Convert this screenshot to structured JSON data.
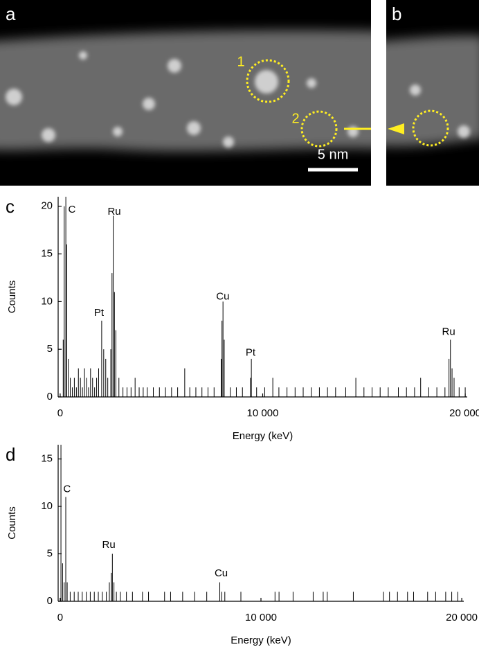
{
  "panels": {
    "a": {
      "label": "a",
      "markers": [
        "1",
        "2"
      ],
      "scale_bar": "5 nm"
    },
    "b": {
      "label": "b"
    }
  },
  "chart_data": [
    {
      "type": "stick",
      "panel_label": "c",
      "xlabel": "Energy (keV)",
      "ylabel": "Counts",
      "color": "#000000",
      "xlim": [
        -100,
        20100
      ],
      "xticks": [
        0,
        {
          "value": 10000,
          "label": "10 000"
        },
        {
          "value": 20000,
          "label": "20 000"
        }
      ],
      "ylim": [
        0,
        21
      ],
      "yticks": [
        0,
        5,
        10,
        15,
        20
      ],
      "x": [
        150,
        200,
        280,
        320,
        400,
        500,
        600,
        700,
        800,
        900,
        1000,
        1100,
        1200,
        1300,
        1400,
        1500,
        1600,
        1700,
        1800,
        1900,
        2050,
        2150,
        2250,
        2350,
        2500,
        2560,
        2620,
        2680,
        2750,
        2900,
        3100,
        3300,
        3500,
        3700,
        3900,
        4100,
        4300,
        4600,
        4900,
        5200,
        5500,
        5800,
        6150,
        6400,
        6700,
        7000,
        7300,
        7600,
        7950,
        7990,
        8040,
        8100,
        8400,
        8700,
        9000,
        9400,
        9440,
        9700,
        10100,
        10500,
        10800,
        11200,
        11600,
        12000,
        12400,
        12800,
        13200,
        13600,
        14100,
        14600,
        15000,
        15400,
        15800,
        16200,
        16700,
        17100,
        17500,
        17800,
        18200,
        18600,
        19000,
        19200,
        19270,
        19350,
        19450,
        19700,
        20000
      ],
      "values": [
        6,
        20,
        21,
        16,
        4,
        2,
        1,
        2,
        1,
        3,
        2,
        1,
        3,
        2,
        1,
        3,
        2,
        1,
        2,
        3,
        8,
        5,
        4,
        2,
        5,
        13,
        19,
        11,
        7,
        2,
        1,
        1,
        1,
        2,
        1,
        1,
        1,
        1,
        1,
        1,
        1,
        1,
        3,
        1,
        1,
        1,
        1,
        1,
        4,
        8,
        10,
        6,
        1,
        1,
        1,
        2,
        4,
        1,
        1,
        2,
        1,
        1,
        1,
        1,
        1,
        1,
        1,
        1,
        1,
        2,
        1,
        1,
        1,
        1,
        1,
        1,
        1,
        2,
        1,
        1,
        1,
        4,
        6,
        3,
        2,
        1,
        1
      ],
      "annotations": [
        {
          "text": "C",
          "x": 580,
          "y": 19.6
        },
        {
          "text": "Ru",
          "x": 2670,
          "y": 19.4
        },
        {
          "text": "Pt",
          "x": 1915,
          "y": 8.8
        },
        {
          "text": "Cu",
          "x": 8030,
          "y": 10.5
        },
        {
          "text": "Pt",
          "x": 9400,
          "y": 4.6
        },
        {
          "text": "Ru",
          "x": 19180,
          "y": 6.8
        }
      ]
    },
    {
      "type": "stick",
      "panel_label": "d",
      "xlabel": "Energy (keV)",
      "ylabel": "Counts",
      "color": "#000000",
      "xlim": [
        -100,
        20100
      ],
      "xticks": [
        0,
        {
          "value": 10000,
          "label": "10 000"
        },
        {
          "value": 20000,
          "label": "20 000"
        }
      ],
      "ylim": [
        0,
        16.5
      ],
      "yticks": [
        0,
        5,
        10,
        15
      ],
      "x": [
        40,
        120,
        200,
        280,
        350,
        500,
        700,
        900,
        1100,
        1300,
        1500,
        1700,
        1900,
        2100,
        2300,
        2450,
        2550,
        2600,
        2680,
        2800,
        3000,
        3300,
        3600,
        4100,
        4400,
        5200,
        5500,
        6100,
        6700,
        7300,
        7950,
        8050,
        8200,
        9000,
        10700,
        10900,
        11600,
        12600,
        13100,
        13300,
        14600,
        16100,
        16400,
        16800,
        17300,
        17600,
        18300,
        18700,
        19200,
        19500,
        19800
      ],
      "values": [
        16.5,
        4,
        2,
        11,
        2,
        1,
        1,
        1,
        1,
        1,
        1,
        1,
        1,
        1,
        1,
        2,
        3,
        5,
        2,
        1,
        1,
        1,
        1,
        1,
        1,
        1,
        1,
        1,
        1,
        1,
        2,
        1,
        1,
        1,
        1,
        1,
        1,
        1,
        1,
        1,
        1,
        1,
        1,
        1,
        1,
        1,
        1,
        1,
        1,
        1,
        1
      ],
      "annotations": [
        {
          "text": "C",
          "x": 340,
          "y": 11.8
        },
        {
          "text": "Ru",
          "x": 2420,
          "y": 5.9
        },
        {
          "text": "Cu",
          "x": 8020,
          "y": 2.9
        }
      ]
    }
  ]
}
